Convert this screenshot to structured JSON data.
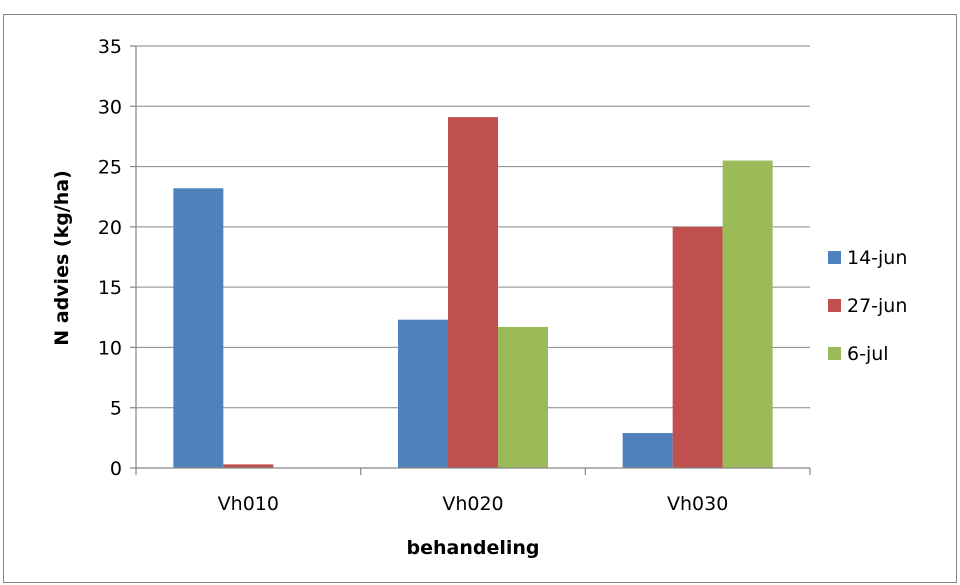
{
  "chart_data": {
    "type": "bar",
    "categories": [
      "Vh010",
      "Vh020",
      "Vh030"
    ],
    "series": [
      {
        "name": "14-jun",
        "color": "#4f81bd",
        "values": [
          23.2,
          12.3,
          2.9
        ]
      },
      {
        "name": "27-jun",
        "color": "#c0504d",
        "values": [
          0.3,
          29.1,
          20.0
        ]
      },
      {
        "name": "6-jul",
        "color": "#9bbb59",
        "values": [
          0,
          11.7,
          25.5
        ]
      }
    ],
    "xlabel": "behandeling",
    "ylabel": "N advies (kg/ha)",
    "ylim": [
      0,
      35
    ],
    "yticks": [
      "0",
      "5",
      "10",
      "15",
      "20",
      "25",
      "30",
      "35"
    ],
    "grid": true,
    "legend_position": "right"
  }
}
